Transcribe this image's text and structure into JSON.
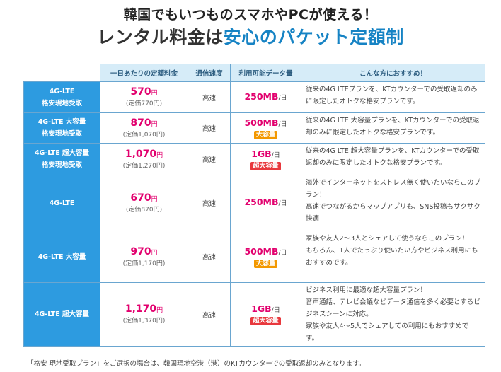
{
  "header": {
    "line1": "韓国でもいつものスマホやPCが使える！",
    "line2_plain": "レンタル料金は",
    "line2_accent": "安心のパケット定額制"
  },
  "colors": {
    "accent_blue": "#1683c4",
    "plan_cell_blue": "#2d9be0",
    "price_pink": "#e2006e",
    "badge_orange": "#f39800",
    "badge_red": "#e8383d"
  },
  "table": {
    "headers": [
      "一日あたりの定額料金",
      "通信速度",
      "利用可能データ量",
      "こんな方におすすめ！"
    ],
    "rows": [
      {
        "plan_line1": "4G-LTE",
        "plan_line2": "格安現地受取",
        "price": "570",
        "price_unit": "円",
        "list_price": "(定価770円)",
        "speed": "高速",
        "data": "250MB",
        "data_unit": "/日",
        "badge": "",
        "desc": "従来の4G LTEプランを、KTカウンターでの受取返却のみに限定したオトクな格安プランです。"
      },
      {
        "plan_line1": "4G-LTE 大容量",
        "plan_line2": "格安現地受取",
        "price": "870",
        "price_unit": "円",
        "list_price": "(定価1,070円)",
        "speed": "高速",
        "data": "500MB",
        "data_unit": "/日",
        "badge": "大容量",
        "desc": "従来の4G LTE 大容量プランを、KTカウンターでの受取返却のみに限定したオトクな格安プランです。"
      },
      {
        "plan_line1": "4G-LTE 超大容量",
        "plan_line2": "格安現地受取",
        "price": "1,070",
        "price_unit": "円",
        "list_price": "(定価1,270円)",
        "speed": "高速",
        "data": "1GB",
        "data_unit": "/日",
        "badge": "超大容量",
        "desc": "従来の4G LTE 超大容量プランを、KTカウンターでの受取返却のみに限定したオトクな格安プランです。"
      },
      {
        "plan_line1": "4G-LTE",
        "plan_line2": "",
        "price": "670",
        "price_unit": "円",
        "list_price": "(定価870円)",
        "speed": "高速",
        "data": "250MB",
        "data_unit": "/日",
        "badge": "",
        "desc": "海外でインターネットをストレス無く使いたいならこのプラン！\n高速でつながるからマップアプリも、SNS投稿もサクサク快適"
      },
      {
        "plan_line1": "4G-LTE 大容量",
        "plan_line2": "",
        "price": "970",
        "price_unit": "円",
        "list_price": "(定価1,170円)",
        "speed": "高速",
        "data": "500MB",
        "data_unit": "/日",
        "badge": "大容量",
        "desc": "家族や友人2～3人とシェアして使うならこのプラン！\nもちろん、1人でたっぷり使いたい方やビジネス利用にもおすすめです。"
      },
      {
        "plan_line1": "4G-LTE 超大容量",
        "plan_line2": "",
        "price": "1,170",
        "price_unit": "円",
        "list_price": "(定価1,370円)",
        "speed": "高速",
        "data": "1GB",
        "data_unit": "/日",
        "badge": "超大容量",
        "desc": "ビジネス利用に最適な超大容量プラン！\n音声通話、テレビ会議などデータ通信を多く必要とするビジネスシーンに対応。\n家族や友人4～5人でシェアしての利用にもおすすめです。"
      }
    ]
  },
  "footnote": "「格安 現地受取プラン」をご選択の場合は、韓国現地空港（港）のKTカウンターでの受取返却のみとなります。"
}
